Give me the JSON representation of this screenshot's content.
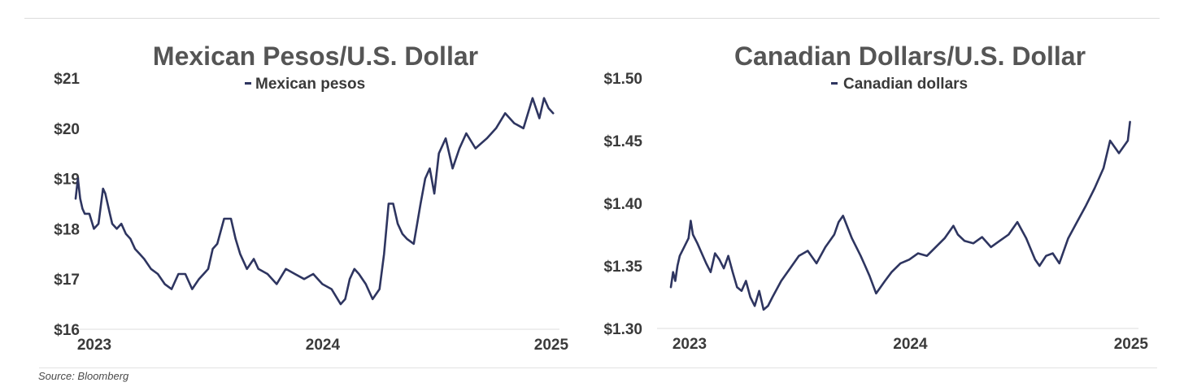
{
  "source": "Source: Bloomberg",
  "colors": {
    "line": "#2e3560",
    "title": "#555555",
    "text": "#3a3a3a"
  },
  "chart_data": [
    {
      "type": "line",
      "title": "Mexican Pesos/U.S. Dollar",
      "legend": "Mexican pesos",
      "legend_position": "top-center",
      "y_ticks": [
        "$21",
        "$20",
        "$19",
        "$18",
        "$17",
        "$16"
      ],
      "y_tick_values": [
        21,
        20,
        19,
        18,
        17,
        16
      ],
      "x_ticks": [
        "2023",
        "2024",
        "2025"
      ],
      "x_tick_values": [
        2023.0,
        2024.0,
        2025.0
      ],
      "ylim": [
        16,
        21
      ],
      "xlim": [
        2023.0,
        2025.1
      ],
      "grid": false,
      "series": [
        {
          "name": "Mexican pesos",
          "x": [
            2023.0,
            2023.01,
            2023.02,
            2023.03,
            2023.04,
            2023.06,
            2023.08,
            2023.1,
            2023.12,
            2023.13,
            2023.14,
            2023.15,
            2023.16,
            2023.18,
            2023.2,
            2023.22,
            2023.24,
            2023.26,
            2023.28,
            2023.3,
            2023.33,
            2023.36,
            2023.39,
            2023.42,
            2023.45,
            2023.48,
            2023.51,
            2023.54,
            2023.58,
            2023.6,
            2023.62,
            2023.65,
            2023.68,
            2023.7,
            2023.72,
            2023.75,
            2023.78,
            2023.8,
            2023.84,
            2023.88,
            2023.92,
            2023.96,
            2024.0,
            2024.04,
            2024.08,
            2024.12,
            2024.16,
            2024.18,
            2024.2,
            2024.22,
            2024.24,
            2024.27,
            2024.3,
            2024.33,
            2024.35,
            2024.37,
            2024.39,
            2024.41,
            2024.43,
            2024.45,
            2024.48,
            2024.51,
            2024.53,
            2024.55,
            2024.57,
            2024.59,
            2024.62,
            2024.65,
            2024.68,
            2024.71,
            2024.75,
            2024.8,
            2024.84,
            2024.88,
            2024.92,
            2024.96,
            2025.0,
            2025.03,
            2025.05,
            2025.07,
            2025.09
          ],
          "values": [
            18.6,
            19.0,
            18.6,
            18.4,
            18.3,
            18.3,
            18.0,
            18.1,
            18.8,
            18.7,
            18.5,
            18.3,
            18.1,
            18.0,
            18.1,
            17.9,
            17.8,
            17.6,
            17.5,
            17.4,
            17.2,
            17.1,
            16.9,
            16.8,
            17.1,
            17.1,
            16.8,
            17.0,
            17.2,
            17.6,
            17.7,
            18.2,
            18.2,
            17.8,
            17.5,
            17.2,
            17.4,
            17.2,
            17.1,
            16.9,
            17.2,
            17.1,
            17.0,
            17.1,
            16.9,
            16.8,
            16.5,
            16.6,
            17.0,
            17.2,
            17.1,
            16.9,
            16.6,
            16.8,
            17.5,
            18.5,
            18.5,
            18.1,
            17.9,
            17.8,
            17.7,
            18.5,
            19.0,
            19.2,
            18.7,
            19.5,
            19.8,
            19.2,
            19.6,
            19.9,
            19.6,
            19.8,
            20.0,
            20.3,
            20.1,
            20.0,
            20.6,
            20.2,
            20.6,
            20.4,
            20.3
          ]
        }
      ]
    },
    {
      "type": "line",
      "title": "Canadian Dollars/U.S. Dollar",
      "legend": "Canadian dollars",
      "legend_position": "top-center",
      "y_ticks": [
        "$1.50",
        "$1.45",
        "$1.40",
        "$1.35",
        "$1.30"
      ],
      "y_tick_values": [
        1.5,
        1.45,
        1.4,
        1.35,
        1.3
      ],
      "x_ticks": [
        "2023",
        "2024",
        "2025"
      ],
      "x_tick_values": [
        2023.0,
        2024.0,
        2025.0
      ],
      "ylim": [
        1.3,
        1.5
      ],
      "xlim": [
        2023.0,
        2025.1
      ],
      "grid": false,
      "series": [
        {
          "name": "Canadian dollars",
          "x": [
            2023.0,
            2023.01,
            2023.02,
            2023.03,
            2023.04,
            2023.06,
            2023.08,
            2023.09,
            2023.1,
            2023.12,
            2023.14,
            2023.16,
            2023.18,
            2023.2,
            2023.22,
            2023.24,
            2023.26,
            2023.28,
            2023.3,
            2023.32,
            2023.34,
            2023.36,
            2023.38,
            2023.4,
            2023.42,
            2023.44,
            2023.46,
            2023.5,
            2023.54,
            2023.58,
            2023.62,
            2023.66,
            2023.7,
            2023.74,
            2023.76,
            2023.78,
            2023.82,
            2023.86,
            2023.88,
            2023.9,
            2023.93,
            2023.97,
            2024.0,
            2024.04,
            2024.08,
            2024.12,
            2024.16,
            2024.2,
            2024.24,
            2024.28,
            2024.3,
            2024.33,
            2024.37,
            2024.41,
            2024.45,
            2024.49,
            2024.53,
            2024.57,
            2024.61,
            2024.65,
            2024.67,
            2024.7,
            2024.73,
            2024.76,
            2024.8,
            2024.84,
            2024.88,
            2024.92,
            2024.96,
            2024.99,
            2025.01,
            2025.03,
            2025.05,
            2025.07,
            2025.08
          ],
          "values": [
            1.333,
            1.345,
            1.338,
            1.35,
            1.358,
            1.365,
            1.372,
            1.386,
            1.375,
            1.368,
            1.36,
            1.352,
            1.345,
            1.36,
            1.355,
            1.348,
            1.358,
            1.345,
            1.333,
            1.33,
            1.338,
            1.325,
            1.318,
            1.33,
            1.315,
            1.318,
            1.325,
            1.338,
            1.348,
            1.358,
            1.362,
            1.352,
            1.365,
            1.375,
            1.385,
            1.39,
            1.372,
            1.358,
            1.35,
            1.342,
            1.328,
            1.338,
            1.345,
            1.352,
            1.355,
            1.36,
            1.358,
            1.365,
            1.372,
            1.382,
            1.375,
            1.37,
            1.368,
            1.373,
            1.365,
            1.37,
            1.375,
            1.385,
            1.372,
            1.355,
            1.35,
            1.358,
            1.36,
            1.352,
            1.372,
            1.385,
            1.398,
            1.412,
            1.428,
            1.45,
            1.445,
            1.44,
            1.445,
            1.45,
            1.465
          ]
        }
      ]
    }
  ]
}
